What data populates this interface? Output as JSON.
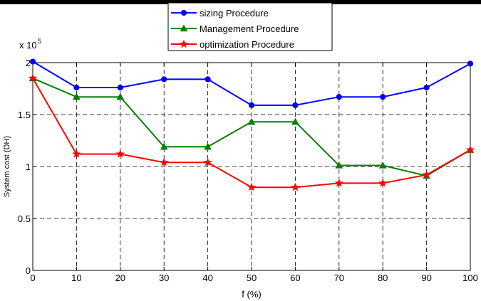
{
  "chart_data": {
    "type": "line",
    "title": "",
    "xlabel": "f (%)",
    "ylabel": "System cost (DH)",
    "y_multiplier_label": "x 10",
    "y_multiplier_exponent": "5",
    "x": [
      0,
      10,
      20,
      30,
      40,
      50,
      60,
      70,
      80,
      90,
      100
    ],
    "xlim": [
      0,
      100
    ],
    "ylim": [
      0,
      2
    ],
    "x_ticks": [
      "0",
      "10",
      "20",
      "30",
      "40",
      "50",
      "60",
      "70",
      "80",
      "90",
      "100"
    ],
    "y_ticks": [
      "0",
      "0.5",
      "1",
      "1.5",
      "2"
    ],
    "y_tick_values": [
      0,
      0.5,
      1,
      1.5,
      2
    ],
    "grid": true,
    "legend_position": "top-center",
    "series": [
      {
        "name": "sizing Procedure",
        "color": "#0000ff",
        "marker": "circle",
        "values": [
          2.01,
          1.76,
          1.76,
          1.84,
          1.84,
          1.59,
          1.59,
          1.67,
          1.67,
          1.76,
          1.99
        ]
      },
      {
        "name": "Management Procedure",
        "color": "#008000",
        "marker": "triangle",
        "values": [
          1.85,
          1.67,
          1.67,
          1.19,
          1.19,
          1.43,
          1.43,
          1.01,
          1.01,
          0.91,
          1.16
        ]
      },
      {
        "name": "optimization Procedure",
        "color": "#ff0000",
        "marker": "star",
        "values": [
          1.85,
          1.12,
          1.12,
          1.04,
          1.04,
          0.8,
          0.8,
          0.84,
          0.84,
          0.92,
          1.16
        ]
      }
    ]
  }
}
